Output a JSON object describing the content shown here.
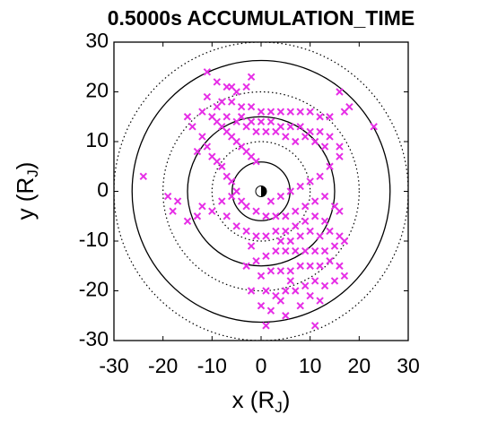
{
  "chart_data": {
    "type": "scatter",
    "title": "0.5000s ACCUMULATION_TIME",
    "xlabel": [
      "x (R",
      "J",
      ")"
    ],
    "ylabel": [
      "y (R",
      "J",
      ")"
    ],
    "xlim": [
      -30,
      30
    ],
    "ylim": [
      -30,
      30
    ],
    "xticks": [
      -30,
      -20,
      -10,
      0,
      10,
      20,
      30
    ],
    "yticks": [
      -30,
      -20,
      -10,
      0,
      10,
      20,
      30
    ],
    "reference_circles": [
      {
        "r": 5.9,
        "style": "solid"
      },
      {
        "r": 10,
        "style": "dotted"
      },
      {
        "r": 15,
        "style": "solid"
      },
      {
        "r": 20,
        "style": "dotted"
      },
      {
        "r": 26.3,
        "style": "solid"
      },
      {
        "r": 30,
        "style": "dotted"
      }
    ],
    "series": [
      {
        "color": "#e62ee6",
        "x": [
          -11,
          -9,
          -7,
          -6,
          -5,
          -8,
          -6,
          -4,
          -2,
          0,
          2,
          4,
          6,
          8,
          10,
          12,
          14,
          16,
          17,
          23,
          -12,
          -10,
          -9,
          -8,
          -7,
          -6,
          -5,
          -4,
          -3,
          -2,
          -1,
          -9,
          -11,
          -4,
          -2,
          0,
          2,
          4,
          6,
          8,
          10,
          12,
          14,
          16,
          13,
          11,
          9,
          7,
          5,
          3,
          1,
          -1,
          -3,
          -5,
          -7,
          -12,
          -11,
          -10,
          -9,
          -8,
          -7,
          -6,
          -5,
          -4,
          -3,
          -1,
          1,
          3,
          5,
          7,
          9,
          11,
          13,
          15,
          16,
          -6,
          -8,
          -10,
          -13,
          -15,
          -18,
          -17,
          -24,
          -19,
          -12,
          -7,
          -5,
          -3,
          -1,
          1,
          3,
          5,
          7,
          9,
          11,
          13,
          14,
          16,
          17,
          15,
          13,
          11,
          9,
          7,
          5,
          3,
          1,
          -1,
          -3,
          0,
          2,
          4,
          6,
          8,
          10,
          12,
          14,
          16,
          17,
          15,
          13,
          11,
          9,
          7,
          5,
          3,
          1,
          -2,
          0,
          2,
          4,
          5,
          8,
          10,
          11,
          1,
          12,
          6,
          8,
          10,
          12,
          4,
          6,
          -2,
          2,
          4,
          6,
          8,
          10,
          12,
          14,
          16,
          18,
          -2,
          -3,
          -13,
          -14,
          -15
        ],
        "y": [
          24,
          22,
          21,
          21,
          20,
          18,
          18,
          17,
          17,
          16,
          16,
          16,
          16,
          16,
          16,
          15,
          15,
          20,
          16,
          13,
          16,
          15,
          14,
          13,
          12,
          11,
          10,
          9,
          8,
          7,
          6,
          17,
          19,
          15,
          14,
          14,
          14,
          13,
          13,
          13,
          12,
          12,
          11,
          9,
          9,
          10,
          11,
          10,
          11,
          12,
          12,
          12,
          13,
          14,
          15,
          11,
          9,
          7,
          6,
          5,
          3,
          2,
          0,
          -2,
          -3,
          -4,
          -5,
          -5,
          -5,
          -4,
          -3,
          -2,
          -1,
          -3,
          -4,
          -1,
          -2,
          -4,
          -5,
          -6,
          -4,
          -2,
          3,
          -1,
          -3,
          -5,
          -7,
          -8,
          -9,
          -9,
          -8,
          -8,
          -7,
          -6,
          -5,
          -6,
          -8,
          -9,
          -10,
          -11,
          -12,
          -12,
          -12,
          -12,
          -12,
          -12,
          -13,
          -14,
          -15,
          -17,
          -16,
          -16,
          -16,
          -15,
          -15,
          -15,
          -14,
          -15,
          -17,
          -18,
          -19,
          -18,
          -19,
          -20,
          -20,
          -21,
          -20,
          -20,
          -23,
          -24,
          -22,
          -25,
          -23,
          -21,
          -27,
          -27,
          -22,
          -18,
          -9,
          -8,
          -9,
          -10,
          -10,
          -11,
          -2,
          -1,
          0,
          1,
          2,
          3,
          5,
          7,
          17,
          23,
          21,
          8,
          13,
          15
        ]
      }
    ]
  }
}
